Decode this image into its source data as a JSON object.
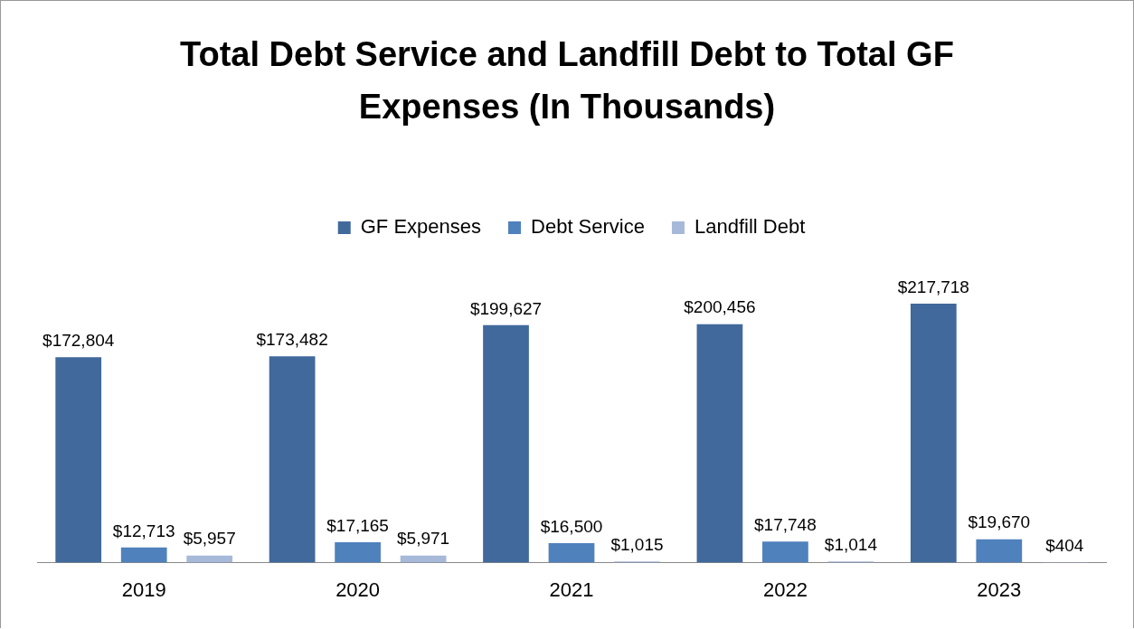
{
  "chart_data": {
    "type": "bar",
    "title": "Total Debt Service and Landfill Debt to Total GF Expenses (In Thousands)",
    "categories": [
      "2019",
      "2020",
      "2021",
      "2022",
      "2023"
    ],
    "series": [
      {
        "name": "GF Expenses",
        "color": "#41699c",
        "values": [
          172804,
          173482,
          199627,
          200456,
          217718
        ],
        "value_labels": [
          "$172,804",
          "$173,482",
          "$199,627",
          "$200,456",
          "$217,718"
        ]
      },
      {
        "name": "Debt Service",
        "color": "#4f81bd",
        "values": [
          12713,
          17165,
          16500,
          17748,
          19670
        ],
        "value_labels": [
          "$12,713",
          "$17,165",
          "$16,500",
          "$17,748",
          "$19,670"
        ]
      },
      {
        "name": "Landfill Debt",
        "color": "#a7b9d9",
        "values": [
          5957,
          5971,
          1015,
          1014,
          404
        ],
        "value_labels": [
          "$5,957",
          "$5,971",
          "$1,015",
          "$1,014",
          "$404"
        ]
      }
    ],
    "legend": "top",
    "grid": false
  }
}
